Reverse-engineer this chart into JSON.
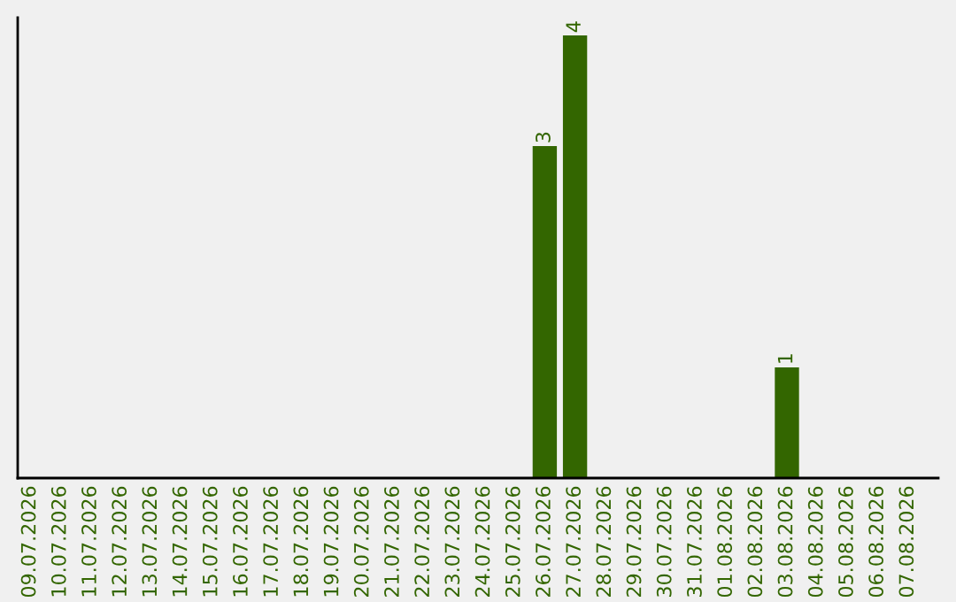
{
  "chart_data": {
    "type": "bar",
    "categories": [
      "09.07.2026",
      "10.07.2026",
      "11.07.2026",
      "12.07.2026",
      "13.07.2026",
      "14.07.2026",
      "15.07.2026",
      "16.07.2026",
      "17.07.2026",
      "18.07.2026",
      "19.07.2026",
      "20.07.2026",
      "21.07.2026",
      "22.07.2026",
      "23.07.2026",
      "24.07.2026",
      "25.07.2026",
      "26.07.2026",
      "27.07.2026",
      "28.07.2026",
      "29.07.2026",
      "30.07.2026",
      "31.07.2026",
      "01.08.2026",
      "02.08.2026",
      "03.08.2026",
      "04.08.2026",
      "05.08.2026",
      "06.08.2026",
      "07.08.2026"
    ],
    "values": [
      null,
      null,
      null,
      null,
      null,
      null,
      null,
      null,
      null,
      null,
      null,
      null,
      null,
      null,
      null,
      null,
      null,
      3,
      4,
      null,
      null,
      null,
      null,
      null,
      null,
      1,
      null,
      null,
      null,
      null
    ],
    "value_labels": [
      null,
      null,
      null,
      null,
      null,
      null,
      null,
      null,
      null,
      null,
      null,
      null,
      null,
      null,
      null,
      null,
      null,
      "3",
      "4",
      null,
      null,
      null,
      null,
      null,
      null,
      "1",
      null,
      null,
      null,
      null
    ],
    "color": "#336600",
    "grid": false,
    "legend": false
  }
}
